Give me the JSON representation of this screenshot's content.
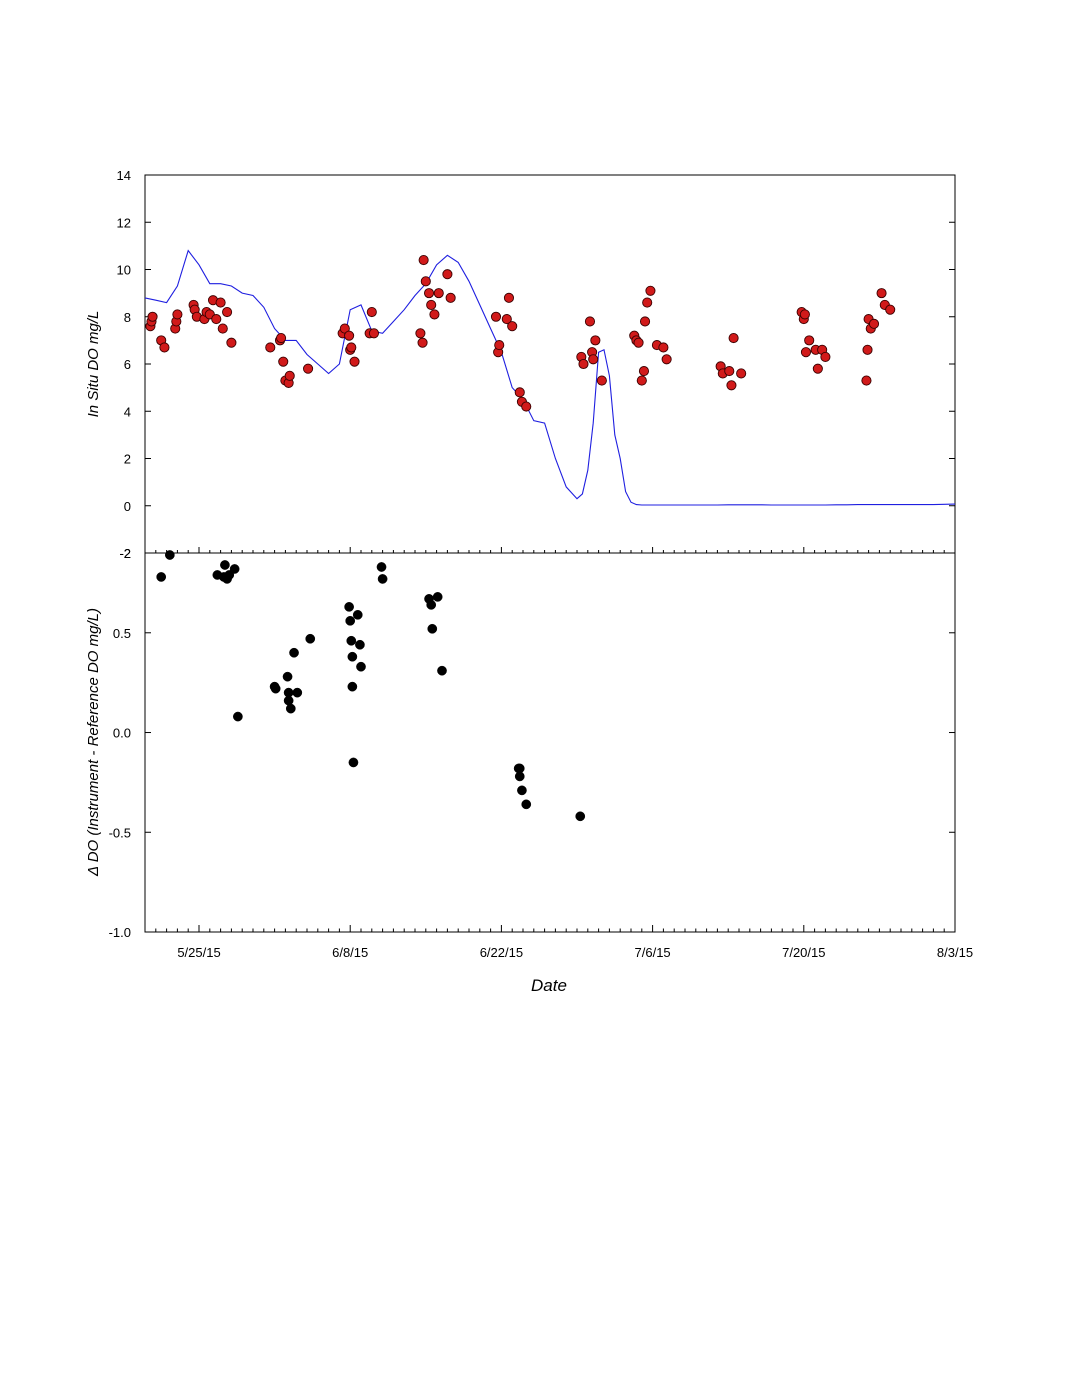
{
  "chart_data": [
    {
      "type": "line+scatter",
      "panel": "top",
      "ylabel": "In Situ DO mg/L",
      "xlabel": "",
      "ylim": [
        -2,
        14
      ],
      "yticks": [
        -2,
        0,
        2,
        4,
        6,
        8,
        10,
        12,
        14
      ],
      "xlim_days_from_may20": [
        0,
        75
      ],
      "x_units": "days since 5/20/15",
      "grid": false,
      "series": [
        {
          "name": "",
          "kind": "line",
          "color": "#1f1fe0",
          "x": [
            0,
            1,
            2,
            3,
            4,
            5,
            6,
            7,
            8,
            9,
            10,
            11,
            12,
            13,
            14,
            15,
            16,
            17,
            18,
            19,
            20,
            21,
            22,
            23,
            24,
            25,
            26,
            27,
            28,
            29,
            30,
            31,
            32,
            33,
            34,
            35,
            36,
            37,
            38,
            39,
            40,
            40.5,
            41,
            41.5,
            42,
            42.5,
            43,
            43.5,
            44,
            44.5,
            45,
            45.5,
            46,
            47,
            48,
            49,
            50,
            51,
            52,
            53,
            54,
            55,
            56,
            57,
            58,
            59,
            60,
            61,
            62,
            63,
            64,
            65,
            66,
            67,
            68,
            69,
            70,
            71,
            72,
            73,
            74,
            75
          ],
          "y": [
            8.8,
            8.7,
            8.6,
            9.3,
            10.8,
            10.2,
            9.4,
            9.4,
            9.3,
            9.0,
            8.9,
            8.4,
            7.5,
            7.0,
            7.0,
            6.4,
            6.0,
            5.6,
            6.0,
            8.3,
            8.5,
            7.4,
            7.3,
            7.8,
            8.3,
            8.9,
            9.4,
            10.2,
            10.6,
            10.3,
            9.5,
            8.5,
            7.5,
            6.5,
            5.0,
            4.5,
            3.6,
            3.5,
            2.0,
            0.8,
            0.3,
            0.5,
            1.5,
            3.5,
            6.5,
            6.6,
            5.5,
            3.0,
            2.0,
            0.6,
            0.15,
            0.05,
            0.03,
            0.03,
            0.03,
            0.03,
            0.03,
            0.03,
            0.03,
            0.03,
            0.04,
            0.04,
            0.04,
            0.04,
            0.03,
            0.03,
            0.03,
            0.03,
            0.03,
            0.03,
            0.04,
            0.04,
            0.05,
            0.05,
            0.05,
            0.05,
            0.05,
            0.05,
            0.05,
            0.05,
            0.06,
            0.07
          ]
        },
        {
          "name": "",
          "kind": "scatter",
          "color": "#d11a1a",
          "x": [
            0.5,
            0.6,
            0.7,
            1.5,
            1.8,
            2.8,
            2.9,
            3.0,
            4.5,
            4.6,
            4.8,
            5.5,
            5.7,
            6.0,
            6.3,
            6.6,
            7.0,
            7.2,
            7.6,
            8.0,
            11.6,
            12.5,
            12.6,
            12.8,
            13.0,
            13.3,
            13.4,
            15.1,
            18.3,
            18.5,
            18.9,
            19.0,
            19.1,
            19.4,
            20.8,
            21.0,
            21.2,
            25.5,
            25.7,
            25.8,
            26.0,
            26.3,
            26.5,
            26.8,
            27.2,
            28.0,
            28.3,
            32.5,
            32.7,
            32.8,
            33.5,
            33.7,
            34.0,
            34.7,
            34.9,
            35.3,
            40.4,
            40.6,
            41.2,
            41.4,
            41.5,
            41.7,
            42.3,
            45.3,
            45.5,
            45.7,
            46.0,
            46.2,
            46.3,
            46.5,
            46.8,
            47.4,
            48.0,
            48.3,
            53.3,
            53.5,
            54.1,
            54.3,
            54.5,
            55.2,
            60.8,
            61.0,
            61.1,
            61.2,
            61.5,
            62.1,
            62.3,
            62.7,
            63.0,
            66.8,
            66.9,
            67.0,
            67.2,
            67.5,
            68.2,
            68.5,
            69.0
          ],
          "y": [
            7.6,
            7.8,
            8.0,
            7.0,
            6.7,
            7.5,
            7.8,
            8.1,
            8.5,
            8.3,
            8.0,
            7.9,
            8.2,
            8.1,
            8.7,
            7.9,
            8.6,
            7.5,
            8.2,
            6.9,
            6.7,
            7.0,
            7.1,
            6.1,
            5.3,
            5.2,
            5.5,
            5.8,
            7.3,
            7.5,
            7.2,
            6.6,
            6.7,
            6.1,
            7.3,
            8.2,
            7.3,
            7.3,
            6.9,
            10.4,
            9.5,
            9.0,
            8.5,
            8.1,
            9.0,
            9.8,
            8.8,
            8.0,
            6.5,
            6.8,
            7.9,
            8.8,
            7.6,
            4.8,
            4.4,
            4.2,
            6.3,
            6.0,
            7.8,
            6.5,
            6.2,
            7.0,
            5.3,
            7.2,
            7.0,
            6.9,
            5.3,
            5.7,
            7.8,
            8.6,
            9.1,
            6.8,
            6.7,
            6.2,
            5.9,
            5.6,
            5.7,
            5.1,
            7.1,
            5.6,
            8.2,
            7.9,
            8.1,
            6.5,
            7.0,
            6.6,
            5.8,
            6.6,
            6.3,
            5.3,
            6.6,
            7.9,
            7.5,
            7.7,
            9.0,
            8.5,
            8.3
          ]
        }
      ]
    },
    {
      "type": "scatter",
      "panel": "bottom",
      "ylabel": "Δ DO (Instrument - Reference DO mg/L)",
      "xlabel": "Date",
      "ylim": [
        -1.0,
        0.9
      ],
      "yticks": [
        -1.0,
        -0.5,
        0.0,
        0.5
      ],
      "top_tick_label": "-2",
      "x_tick_labels": [
        "5/25/15",
        "6/8/15",
        "6/22/15",
        "7/6/15",
        "7/20/15",
        "8/3/15"
      ],
      "x_tick_days": [
        5,
        19,
        33,
        47,
        61,
        75
      ],
      "grid": false,
      "series": [
        {
          "name": "",
          "kind": "scatter",
          "color": "#000000",
          "x": [
            1.5,
            2.3,
            6.7,
            7.3,
            7.4,
            7.6,
            7.6,
            7.8,
            8.3,
            8.6,
            12.0,
            12.1,
            13.2,
            13.3,
            13.3,
            13.5,
            13.8,
            14.1,
            15.3,
            18.9,
            19.0,
            19.1,
            19.2,
            19.2,
            19.3,
            19.7,
            19.9,
            20.0,
            21.9,
            22.0,
            26.3,
            26.5,
            26.6,
            27.1,
            27.5,
            34.6,
            34.7,
            34.7,
            34.9,
            35.3,
            40.3
          ],
          "y": [
            0.78,
            0.89,
            0.79,
            0.78,
            0.84,
            0.77,
            0.78,
            0.79,
            0.82,
            0.08,
            0.23,
            0.22,
            0.28,
            0.2,
            0.16,
            0.12,
            0.4,
            0.2,
            0.47,
            0.63,
            0.56,
            0.46,
            0.38,
            0.23,
            -0.15,
            0.59,
            0.44,
            0.33,
            0.83,
            0.77,
            0.67,
            0.64,
            0.52,
            0.68,
            0.31,
            -0.18,
            -0.22,
            -0.18,
            -0.29,
            -0.36,
            -0.42
          ]
        }
      ]
    }
  ]
}
